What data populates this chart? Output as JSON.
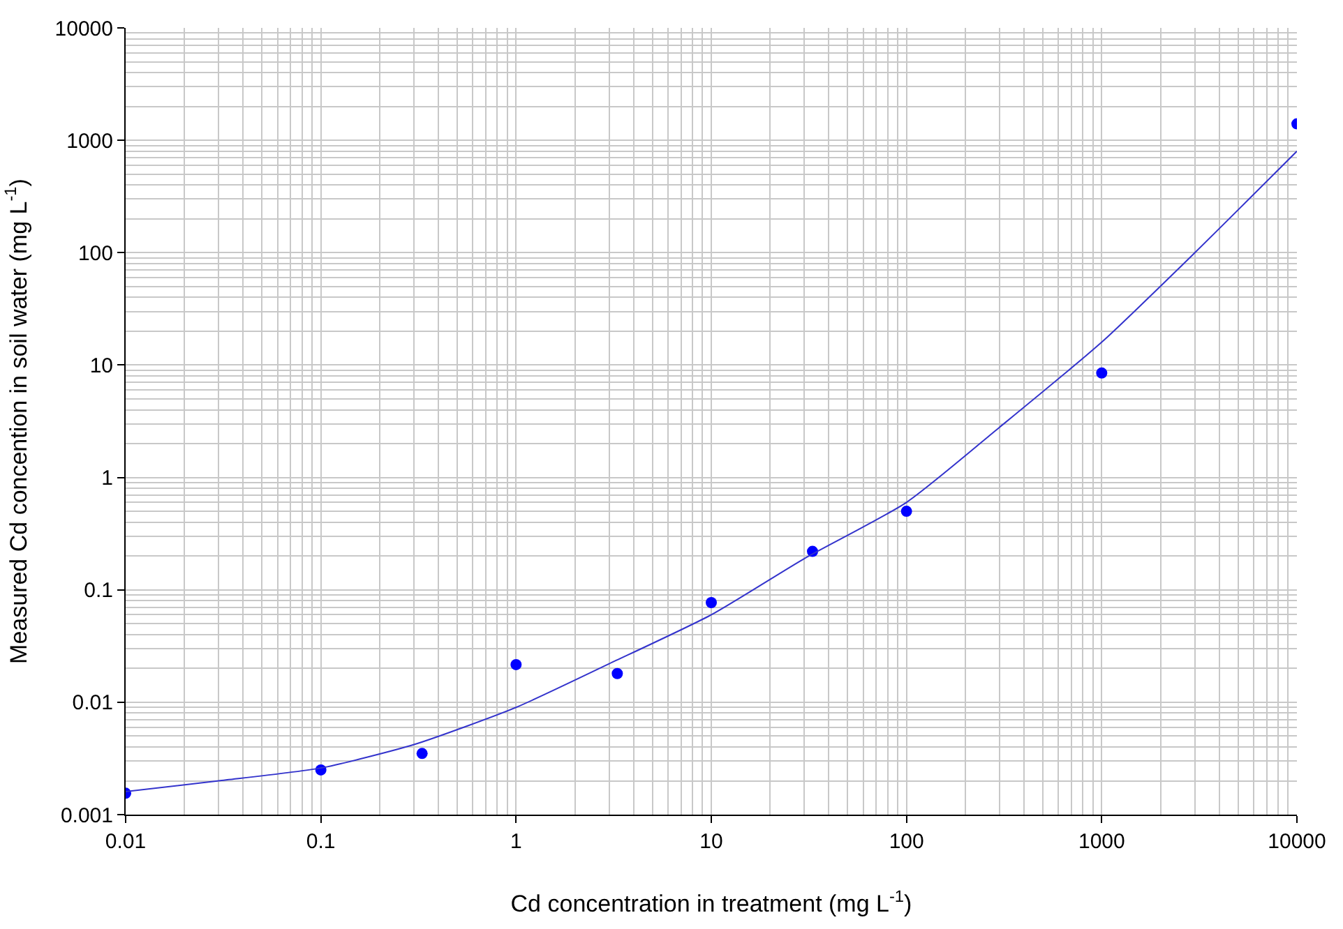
{
  "chart_data": {
    "type": "scatter",
    "xlabel": "Cd concentration in treatment (mg L$^{-1}$)",
    "ylabel": "Measured Cd concention in soil water (mg L$^{-1}$)",
    "log": "xy",
    "grid": true,
    "xlim": [
      0.01,
      10000
    ],
    "ylim": [
      0.001,
      10000
    ],
    "xticks": [
      0.01,
      0.1,
      1,
      10,
      100,
      1000,
      10000
    ],
    "yticks": [
      0.001,
      0.01,
      0.1,
      1,
      10,
      100,
      1000,
      10000
    ],
    "series": [
      {
        "marker": "circle",
        "color": "#0000ff",
        "x": [
          0.01,
          0.1,
          0.33,
          1,
          3.3,
          10,
          33,
          100,
          1000,
          10000
        ],
        "values": [
          0.00155,
          0.0025,
          0.0035,
          0.0216,
          0.018,
          0.077,
          0.22,
          0.5,
          8.5,
          1400
        ]
      },
      {
        "type": "line",
        "marker": "none",
        "line_style": "solid",
        "color": "#3333cc",
        "x": [
          0.01,
          0.03,
          0.1,
          0.3,
          1,
          3,
          10,
          30,
          100,
          300,
          1000,
          3000,
          10000
        ],
        "values": [
          0.0016,
          0.002,
          0.0026,
          0.0042,
          0.009,
          0.022,
          0.06,
          0.19,
          0.6,
          2.8,
          16,
          100,
          800
        ]
      }
    ]
  }
}
